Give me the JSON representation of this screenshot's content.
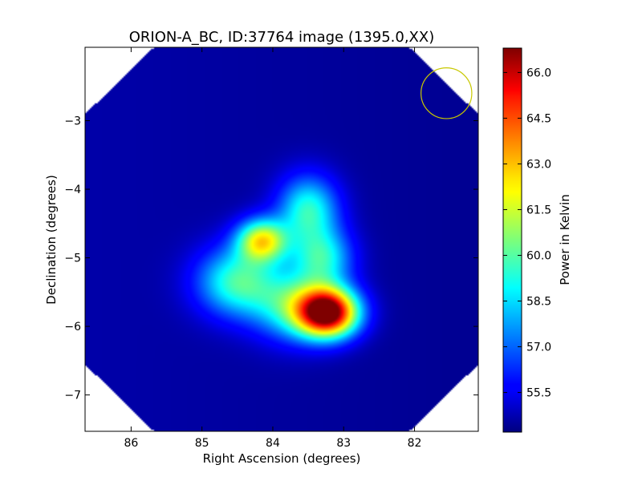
{
  "chart_data": {
    "type": "heatmap",
    "title": "ORION-A_BC, ID:37764 image (1395.0,XX)",
    "xlabel": "Right Ascension (degrees)",
    "ylabel": "Declination (degrees)",
    "xlim": [
      86.65,
      81.1
    ],
    "ylim": [
      -7.53,
      -1.93
    ],
    "xticks": [
      86,
      85,
      84,
      83,
      82
    ],
    "yticks": [
      -3,
      -4,
      -5,
      -6,
      -7
    ],
    "xtick_labels": [
      "86",
      "85",
      "84",
      "83",
      "82"
    ],
    "ytick_labels": [
      "−3",
      "−4",
      "−5",
      "−6",
      "−7"
    ],
    "colorbar": {
      "label": "Power in Kelvin",
      "range": [
        54.2,
        66.8
      ],
      "ticks": [
        55.5,
        57.0,
        58.5,
        60.0,
        61.5,
        63.0,
        64.5,
        66.0
      ],
      "tick_labels": [
        "55.5",
        "57.0",
        "58.5",
        "60.0",
        "61.5",
        "63.0",
        "64.5",
        "66.0"
      ],
      "colormap": "jet"
    },
    "background_level": 54.4,
    "sources": [
      {
        "ra": 83.22,
        "dec": -5.8,
        "peak": 66.8,
        "sigma_ra": 0.3,
        "sigma_dec": 0.25
      },
      {
        "ra": 84.15,
        "dec": -4.75,
        "peak": 61.7,
        "sigma_ra": 0.25,
        "sigma_dec": 0.22
      },
      {
        "ra": 83.5,
        "dec": -4.3,
        "peak": 59.3,
        "sigma_ra": 0.3,
        "sigma_dec": 0.35
      },
      {
        "ra": 84.5,
        "dec": -5.35,
        "peak": 59.5,
        "sigma_ra": 0.4,
        "sigma_dec": 0.35
      },
      {
        "ra": 83.3,
        "dec": -5.0,
        "peak": 58.8,
        "sigma_ra": 0.3,
        "sigma_dec": 0.3
      },
      {
        "ra": 83.7,
        "dec": -5.7,
        "peak": 59.0,
        "sigma_ra": 0.4,
        "sigma_dec": 0.35
      }
    ],
    "beam": {
      "ra": 81.55,
      "dec": -2.6,
      "radius_deg": 0.37,
      "color": "#c8c800"
    }
  }
}
